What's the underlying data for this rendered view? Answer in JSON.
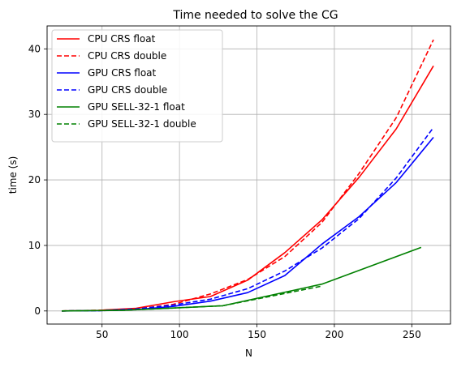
{
  "chart_data": {
    "type": "line",
    "title": "Time needed to solve the CG",
    "xlabel": "N",
    "ylabel": "time (s)",
    "xlim": [
      14.5,
      275
    ],
    "ylim": [
      -2,
      43.5
    ],
    "xticks": [
      50,
      100,
      150,
      200,
      250
    ],
    "yticks": [
      0,
      10,
      20,
      30,
      40
    ],
    "grid": true,
    "legend_position": "top-left",
    "series": [
      {
        "name": "CPU CRS float",
        "color": "#ff0000",
        "dash": "solid",
        "x": [
          24,
          48,
          72,
          96,
          120,
          144,
          168,
          192,
          216,
          240,
          264
        ],
        "y": [
          0.0,
          0.1,
          0.4,
          1.4,
          2.2,
          4.7,
          8.9,
          13.9,
          20.4,
          27.8,
          37.4
        ]
      },
      {
        "name": "CPU CRS double",
        "color": "#ff0000",
        "dash": "dashed",
        "x": [
          24,
          48,
          72,
          96,
          120,
          144,
          168,
          192,
          216,
          240,
          264
        ],
        "y": [
          0.0,
          0.1,
          0.3,
          1.0,
          2.6,
          4.8,
          8.3,
          13.5,
          21.0,
          29.5,
          41.4
        ]
      },
      {
        "name": "GPU CRS float",
        "color": "#0000ff",
        "dash": "solid",
        "x": [
          24,
          48,
          72,
          96,
          120,
          144,
          168,
          192,
          216,
          240,
          264
        ],
        "y": [
          0.0,
          0.05,
          0.2,
          0.7,
          1.5,
          2.8,
          5.4,
          10.2,
          14.4,
          19.6,
          26.5
        ]
      },
      {
        "name": "GPU CRS double",
        "color": "#0000ff",
        "dash": "dashed",
        "x": [
          24,
          48,
          72,
          96,
          120,
          144,
          168,
          192,
          216,
          240,
          264
        ],
        "y": [
          0.0,
          0.05,
          0.3,
          0.9,
          1.8,
          3.4,
          6.1,
          9.6,
          14.1,
          20.3,
          28.0
        ]
      },
      {
        "name": "GPU SELL-32-1 float",
        "color": "#008000",
        "dash": "solid",
        "x": [
          24,
          64,
          128,
          192,
          256
        ],
        "y": [
          0.0,
          0.1,
          0.8,
          4.1,
          9.7
        ]
      },
      {
        "name": "GPU SELL-32-1 double",
        "color": "#008000",
        "dash": "dashed",
        "x": [
          24,
          64,
          128,
          192
        ],
        "y": [
          0.0,
          0.1,
          0.8,
          3.8
        ]
      }
    ]
  }
}
